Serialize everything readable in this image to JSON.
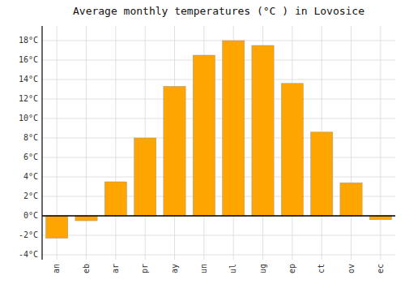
{
  "chart_data": {
    "type": "bar",
    "title": "Average monthly temperatures (°C ) in Lovosice",
    "categories": [
      "an",
      "eb",
      "ar",
      "pr",
      "ay",
      "un",
      "ul",
      "ug",
      "ep",
      "ct",
      "ov",
      "ec"
    ],
    "values": [
      -2.3,
      -0.5,
      3.5,
      8.0,
      13.3,
      16.5,
      18.0,
      17.5,
      13.6,
      8.6,
      3.4,
      -0.4
    ],
    "color": "#FFA500",
    "ylim": [
      -4.5,
      19.5
    ],
    "yticks": [
      {
        "value": -4,
        "label": "-4°C"
      },
      {
        "value": -2,
        "label": "-2°C"
      },
      {
        "value": 0,
        "label": "0°C"
      },
      {
        "value": 2,
        "label": "2°C"
      },
      {
        "value": 4,
        "label": "4°C"
      },
      {
        "value": 6,
        "label": "6°C"
      },
      {
        "value": 8,
        "label": "8°C"
      },
      {
        "value": 10,
        "label": "10°C"
      },
      {
        "value": 12,
        "label": "12°C"
      },
      {
        "value": 14,
        "label": "14°C"
      },
      {
        "value": 16,
        "label": "16°C"
      },
      {
        "value": 18,
        "label": "18°C"
      }
    ],
    "grid": true
  }
}
